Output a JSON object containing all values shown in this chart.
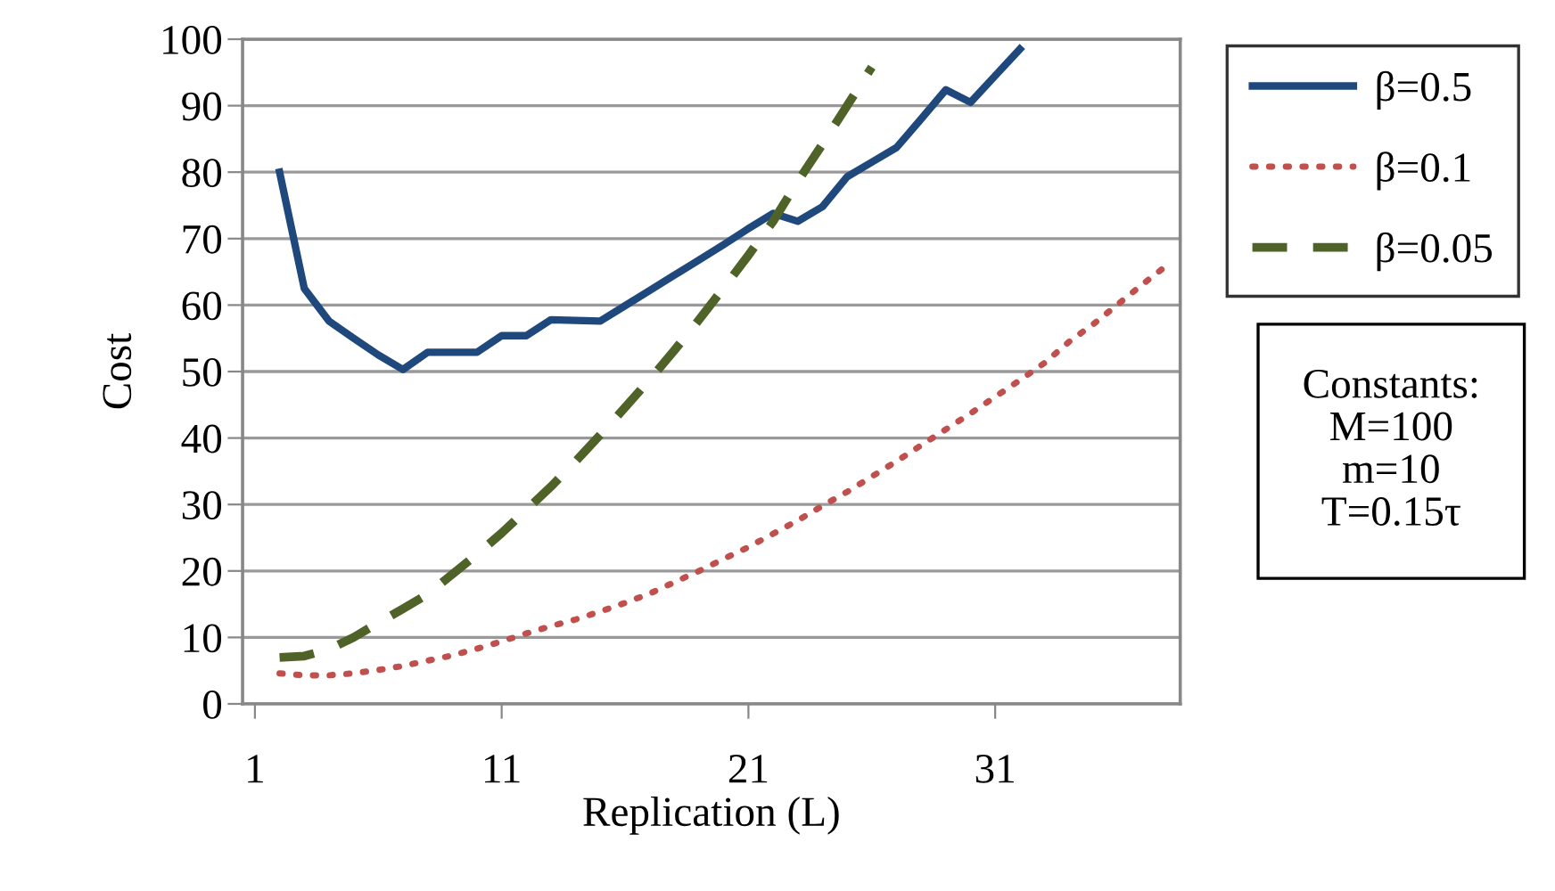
{
  "chart_data": {
    "type": "line",
    "xlabel": "Replication (L)",
    "ylabel": "Cost",
    "xlim": [
      0.5,
      38.5
    ],
    "xticks": [
      1,
      11,
      21,
      31
    ],
    "ylim": [
      0,
      100
    ],
    "yticks": [
      0,
      10,
      20,
      30,
      40,
      50,
      60,
      70,
      80,
      90,
      100
    ],
    "grid": "y",
    "legend": "right",
    "marker": "none",
    "series": [
      {
        "name": "β=0.5",
        "color": "#1f497d",
        "line_style": "solid",
        "x": [
          2,
          3,
          4,
          5,
          6,
          7,
          8,
          9,
          10,
          11,
          12,
          13,
          14,
          15,
          16,
          17,
          18,
          19,
          20,
          21,
          22,
          23,
          24,
          25,
          26,
          27,
          28,
          29,
          30,
          31,
          32
        ],
        "values": [
          80,
          62.5,
          57.6,
          55,
          52.5,
          50.3,
          52.9,
          52.9,
          52.9,
          55.4,
          55.4,
          57.8,
          57.7,
          57.6,
          59.9,
          62.2,
          64.5,
          66.8,
          69.1,
          71.5,
          73.8,
          72.6,
          74.8,
          79.3,
          81.5,
          83.7,
          88,
          92.4,
          90.5,
          94.5,
          98.5
        ]
      },
      {
        "name": "β=0.1",
        "color": "#c0504d",
        "line_style": "dotted",
        "x": [
          2,
          3,
          4,
          5,
          6,
          7,
          8,
          9,
          10,
          11,
          12,
          13,
          14,
          15,
          16,
          17,
          18,
          19,
          20,
          21,
          22,
          23,
          24,
          25,
          26,
          27,
          28,
          29,
          30,
          31,
          32,
          33,
          34,
          35,
          36,
          37,
          38
        ],
        "values": [
          4.6,
          4.3,
          4.3,
          4.6,
          5.1,
          5.7,
          6.5,
          7.3,
          8.3,
          9.4,
          10.6,
          11.7,
          12.7,
          13.9,
          15.2,
          16.6,
          18.3,
          20,
          21.8,
          23.6,
          25.6,
          27.6,
          29.8,
          31.9,
          34.2,
          36.5,
          38.9,
          41.3,
          43.7,
          46.2,
          48.7,
          51.3,
          54.5,
          57.2,
          60.2,
          63.2,
          66.1
        ]
      },
      {
        "name": "β=0.05",
        "color": "#4f6228",
        "line_style": "dashed",
        "x": [
          2,
          3,
          4,
          5,
          6,
          7,
          8,
          9,
          10,
          11,
          12,
          13,
          14,
          15,
          16,
          17,
          18,
          19,
          20,
          21,
          22,
          23,
          24,
          25,
          26
        ],
        "values": [
          7,
          7.2,
          8.2,
          10,
          12.2,
          14.3,
          16.5,
          19.5,
          22.5,
          25.7,
          29.2,
          32.7,
          36.5,
          40.5,
          44.6,
          48.8,
          53.2,
          57.8,
          62.6,
          67.5,
          72.6,
          78.6,
          84.2,
          90,
          95.8
        ]
      }
    ],
    "annotations": [
      "Constants:\nM=100\nm=10\nT=0.15τ"
    ]
  }
}
